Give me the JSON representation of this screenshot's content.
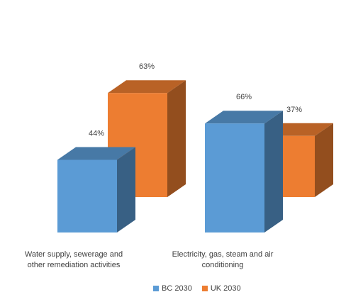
{
  "chart_data": {
    "type": "bar",
    "style": "3d-column",
    "categories": [
      "Water supply, sewerage and other remediation activities",
      "Electricity, gas, steam and air conditioning"
    ],
    "category_lines": [
      [
        "Water supply, sewerage and",
        "other remediation activities"
      ],
      [
        "Electricity, gas, steam and air",
        "conditioning"
      ]
    ],
    "series": [
      {
        "name": "BC 2030",
        "values": [
          44,
          66
        ],
        "labels": [
          "44%",
          "66%"
        ],
        "color": "#5B9BD5"
      },
      {
        "name": "UK 2030",
        "values": [
          63,
          37
        ],
        "labels": [
          "63%",
          "37%"
        ],
        "color": "#ED7D31"
      }
    ],
    "unit": "%",
    "ylim": [
      0,
      100
    ],
    "grid": false,
    "legend_position": "bottom",
    "title": "",
    "xlabel": "",
    "ylabel": ""
  }
}
